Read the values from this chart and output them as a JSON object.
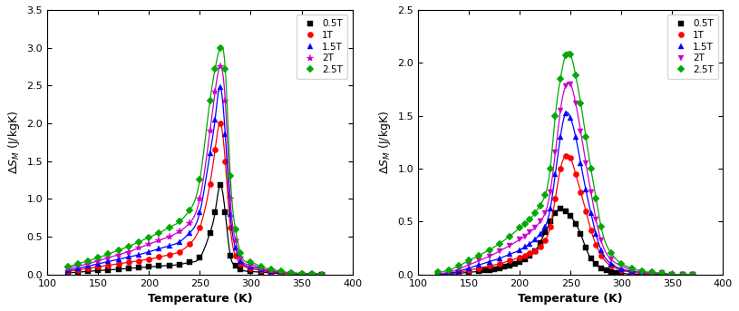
{
  "left_chart": {
    "xlabel": "Temperature (K)",
    "ylabel": "$\\Delta S_M$ (J/kgK)",
    "xlim": [
      100,
      400
    ],
    "ylim": [
      0,
      3.5
    ],
    "yticks": [
      0.0,
      0.5,
      1.0,
      1.5,
      2.0,
      2.5,
      3.0,
      3.5
    ],
    "xticks": [
      100,
      150,
      200,
      250,
      300,
      350,
      400
    ],
    "series": [
      {
        "label": "0.5T",
        "color": "#000000",
        "marker": "s",
        "T": [
          120,
          130,
          140,
          150,
          160,
          170,
          180,
          190,
          200,
          210,
          220,
          230,
          240,
          250,
          260,
          265,
          270,
          275,
          280,
          285,
          290,
          300,
          310,
          320,
          330,
          340,
          350,
          360,
          370
        ],
        "dS": [
          0.02,
          0.03,
          0.04,
          0.05,
          0.06,
          0.07,
          0.08,
          0.09,
          0.1,
          0.11,
          0.12,
          0.13,
          0.16,
          0.22,
          0.55,
          0.82,
          1.18,
          0.82,
          0.25,
          0.12,
          0.07,
          0.04,
          0.03,
          0.02,
          0.01,
          0.01,
          0.0,
          0.0,
          0.0
        ]
      },
      {
        "label": "1T",
        "color": "#ff0000",
        "marker": "o",
        "T": [
          120,
          130,
          140,
          150,
          160,
          170,
          180,
          190,
          200,
          210,
          220,
          230,
          240,
          250,
          260,
          265,
          270,
          275,
          280,
          285,
          290,
          300,
          310,
          320,
          330,
          340,
          350,
          360,
          370
        ],
        "dS": [
          0.04,
          0.06,
          0.08,
          0.1,
          0.12,
          0.14,
          0.16,
          0.18,
          0.2,
          0.23,
          0.26,
          0.3,
          0.4,
          0.62,
          1.2,
          1.65,
          2.0,
          1.5,
          0.62,
          0.25,
          0.14,
          0.08,
          0.05,
          0.03,
          0.02,
          0.01,
          0.01,
          0.0,
          0.0
        ]
      },
      {
        "label": "1.5T",
        "color": "#0000ff",
        "marker": "^",
        "T": [
          120,
          130,
          140,
          150,
          160,
          170,
          180,
          190,
          200,
          210,
          220,
          230,
          240,
          250,
          260,
          265,
          270,
          275,
          280,
          285,
          290,
          300,
          310,
          320,
          330,
          340,
          350,
          360,
          370
        ],
        "dS": [
          0.06,
          0.08,
          0.11,
          0.14,
          0.17,
          0.2,
          0.23,
          0.26,
          0.3,
          0.34,
          0.38,
          0.43,
          0.55,
          0.82,
          1.6,
          2.05,
          2.48,
          1.85,
          0.8,
          0.35,
          0.18,
          0.1,
          0.07,
          0.04,
          0.03,
          0.02,
          0.01,
          0.01,
          0.0
        ]
      },
      {
        "label": "2T",
        "color": "#cc00cc",
        "marker": "*",
        "T": [
          120,
          130,
          140,
          150,
          160,
          170,
          180,
          190,
          200,
          210,
          220,
          230,
          240,
          250,
          260,
          265,
          270,
          275,
          280,
          285,
          290,
          300,
          310,
          320,
          330,
          340,
          350,
          360,
          370
        ],
        "dS": [
          0.08,
          0.11,
          0.14,
          0.18,
          0.22,
          0.26,
          0.3,
          0.35,
          0.4,
          0.45,
          0.5,
          0.57,
          0.68,
          1.0,
          1.9,
          2.42,
          2.75,
          2.3,
          1.0,
          0.45,
          0.22,
          0.13,
          0.08,
          0.05,
          0.03,
          0.02,
          0.01,
          0.01,
          0.0
        ]
      },
      {
        "label": "2.5T",
        "color": "#00aa00",
        "marker": "D",
        "T": [
          120,
          130,
          140,
          150,
          160,
          170,
          180,
          190,
          200,
          210,
          220,
          230,
          240,
          250,
          260,
          265,
          270,
          275,
          280,
          285,
          290,
          300,
          310,
          320,
          330,
          340,
          350,
          360,
          370
        ],
        "dS": [
          0.1,
          0.14,
          0.18,
          0.22,
          0.27,
          0.32,
          0.37,
          0.43,
          0.49,
          0.55,
          0.62,
          0.7,
          0.85,
          1.25,
          2.3,
          2.72,
          3.0,
          2.72,
          1.3,
          0.6,
          0.28,
          0.16,
          0.1,
          0.07,
          0.04,
          0.02,
          0.01,
          0.01,
          0.0
        ]
      }
    ]
  },
  "right_chart": {
    "xlabel": "Temperature (K)",
    "ylabel": "$\\Delta S_M$ (J/kgK)",
    "xlim": [
      100,
      400
    ],
    "ylim": [
      0,
      2.5
    ],
    "yticks": [
      0.0,
      0.5,
      1.0,
      1.5,
      2.0,
      2.5
    ],
    "xticks": [
      100,
      150,
      200,
      250,
      300,
      350,
      400
    ],
    "series": [
      {
        "label": "0.5T",
        "color": "#000000",
        "marker": "s",
        "T": [
          120,
          130,
          140,
          150,
          160,
          165,
          170,
          175,
          180,
          185,
          190,
          195,
          200,
          205,
          210,
          215,
          220,
          225,
          230,
          235,
          240,
          245,
          250,
          255,
          260,
          265,
          270,
          275,
          280,
          285,
          290,
          295,
          300,
          310,
          320,
          330,
          340,
          350,
          360,
          370
        ],
        "dS": [
          0.0,
          0.0,
          0.01,
          0.02,
          0.03,
          0.04,
          0.04,
          0.05,
          0.06,
          0.07,
          0.08,
          0.1,
          0.12,
          0.14,
          0.18,
          0.22,
          0.3,
          0.4,
          0.5,
          0.58,
          0.62,
          0.6,
          0.55,
          0.48,
          0.38,
          0.25,
          0.15,
          0.1,
          0.06,
          0.04,
          0.02,
          0.01,
          0.01,
          0.0,
          0.0,
          0.0,
          0.0,
          0.0,
          0.0,
          0.0
        ]
      },
      {
        "label": "1T",
        "color": "#ff0000",
        "marker": "o",
        "T": [
          120,
          130,
          140,
          150,
          160,
          170,
          180,
          190,
          200,
          205,
          210,
          215,
          220,
          225,
          230,
          235,
          240,
          245,
          250,
          255,
          260,
          265,
          270,
          275,
          280,
          290,
          300,
          310,
          320,
          330,
          340,
          350,
          360,
          370
        ],
        "dS": [
          0.0,
          0.01,
          0.02,
          0.04,
          0.06,
          0.08,
          0.1,
          0.13,
          0.16,
          0.18,
          0.2,
          0.22,
          0.26,
          0.32,
          0.45,
          0.72,
          1.0,
          1.12,
          1.1,
          0.95,
          0.78,
          0.6,
          0.42,
          0.28,
          0.18,
          0.08,
          0.04,
          0.02,
          0.01,
          0.0,
          0.0,
          0.0,
          0.0,
          0.0
        ]
      },
      {
        "label": "1.5T",
        "color": "#0000ff",
        "marker": "^",
        "T": [
          120,
          130,
          140,
          150,
          160,
          170,
          180,
          190,
          200,
          205,
          210,
          215,
          220,
          225,
          230,
          235,
          240,
          245,
          250,
          255,
          260,
          265,
          270,
          275,
          280,
          290,
          300,
          310,
          320,
          330,
          340,
          350,
          360,
          370
        ],
        "dS": [
          0.0,
          0.01,
          0.03,
          0.06,
          0.09,
          0.12,
          0.15,
          0.19,
          0.23,
          0.26,
          0.29,
          0.33,
          0.38,
          0.45,
          0.62,
          0.95,
          1.3,
          1.52,
          1.48,
          1.3,
          1.05,
          0.8,
          0.58,
          0.38,
          0.23,
          0.1,
          0.05,
          0.03,
          0.02,
          0.01,
          0.0,
          0.0,
          0.0,
          0.0
        ]
      },
      {
        "label": "2T",
        "color": "#cc00cc",
        "marker": "v",
        "T": [
          120,
          130,
          140,
          150,
          160,
          170,
          180,
          190,
          200,
          205,
          210,
          215,
          220,
          225,
          230,
          235,
          240,
          245,
          250,
          255,
          260,
          265,
          270,
          275,
          280,
          290,
          300,
          310,
          320,
          330,
          340,
          350,
          360,
          370
        ],
        "dS": [
          0.01,
          0.02,
          0.05,
          0.09,
          0.13,
          0.17,
          0.22,
          0.27,
          0.33,
          0.36,
          0.4,
          0.44,
          0.5,
          0.58,
          0.78,
          1.15,
          1.55,
          1.78,
          1.8,
          1.62,
          1.35,
          1.05,
          0.78,
          0.52,
          0.32,
          0.14,
          0.08,
          0.04,
          0.02,
          0.01,
          0.01,
          0.0,
          0.0,
          0.0
        ]
      },
      {
        "label": "2.5T",
        "color": "#00aa00",
        "marker": "D",
        "T": [
          120,
          130,
          140,
          150,
          160,
          170,
          180,
          190,
          200,
          205,
          210,
          215,
          220,
          225,
          230,
          235,
          240,
          245,
          250,
          255,
          260,
          265,
          270,
          275,
          280,
          290,
          300,
          310,
          320,
          330,
          340,
          350,
          360,
          370
        ],
        "dS": [
          0.02,
          0.04,
          0.08,
          0.13,
          0.18,
          0.23,
          0.29,
          0.36,
          0.44,
          0.48,
          0.52,
          0.58,
          0.65,
          0.75,
          1.0,
          1.5,
          1.85,
          2.07,
          2.08,
          1.88,
          1.62,
          1.3,
          1.0,
          0.72,
          0.45,
          0.2,
          0.1,
          0.06,
          0.03,
          0.02,
          0.01,
          0.0,
          0.0,
          0.0
        ]
      }
    ]
  }
}
